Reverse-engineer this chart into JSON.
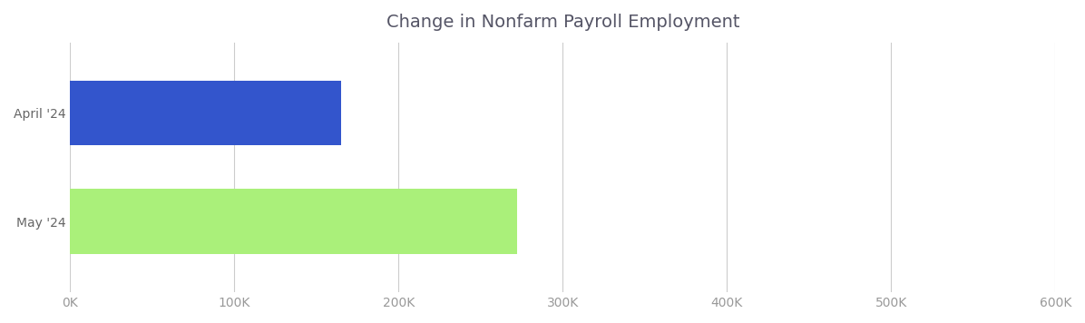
{
  "title": "Change in Nonfarm Payroll Employment",
  "categories": [
    "April '24",
    "May '24"
  ],
  "values": [
    165000,
    272000
  ],
  "bar_colors": [
    "#3355cc",
    "#aaf07a"
  ],
  "xlim": [
    0,
    600000
  ],
  "xticks": [
    0,
    100000,
    200000,
    300000,
    400000,
    500000,
    600000
  ],
  "xtick_labels": [
    "0K",
    "100K",
    "200K",
    "300K",
    "400K",
    "500K",
    "600K"
  ],
  "title_color": "#555566",
  "title_fontsize": 14,
  "tick_label_color": "#999999",
  "grid_color": "#cccccc",
  "background_color": "#ffffff",
  "ylabel_color": "#666666",
  "bar_height": 0.6
}
